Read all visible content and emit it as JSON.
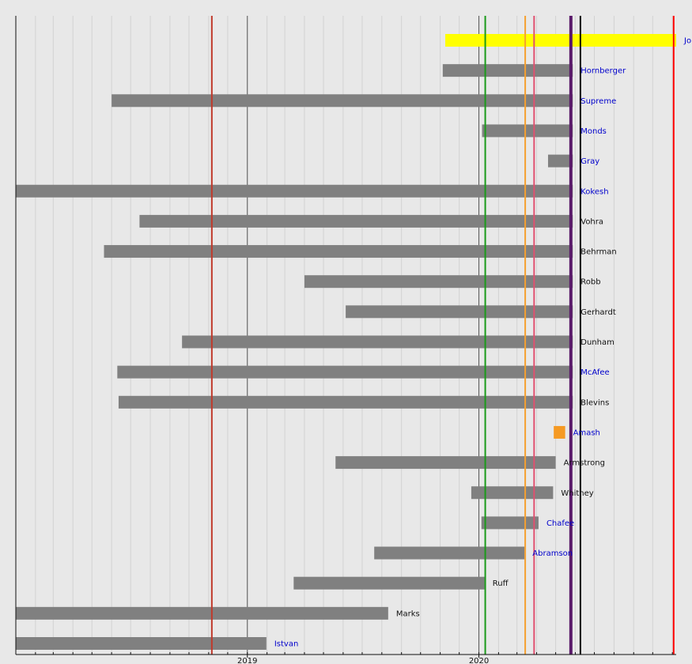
{
  "chart_data": {
    "type": "bar",
    "orientation": "horizontal-timeline",
    "title": "",
    "xlabel": "",
    "ylabel": "",
    "x_range": [
      "2018-01-01",
      "2020-11-07"
    ],
    "x_tick_labels": [
      {
        "label": "2019",
        "date": "2019-01-01"
      },
      {
        "label": "2020",
        "date": "2020-01-01"
      }
    ],
    "grid": true,
    "legend": "none",
    "bars": [
      {
        "name": "Jo",
        "start": "2019-11-09",
        "end": "2020-11-07",
        "color": "#ffff00",
        "link": true
      },
      {
        "name": "Hornberger",
        "start": "2019-11-05",
        "end": "2020-05-28",
        "color": "#808080",
        "link": true
      },
      {
        "name": "Supreme",
        "start": "2018-06-01",
        "end": "2020-05-28",
        "color": "#808080",
        "link": true
      },
      {
        "name": "Monds",
        "start": "2020-01-06",
        "end": "2020-05-28",
        "color": "#808080",
        "link": true
      },
      {
        "name": "Gray",
        "start": "2020-04-19",
        "end": "2020-05-28",
        "color": "#808080",
        "link": true
      },
      {
        "name": "Kokesh",
        "start": "2018-01-01",
        "end": "2020-05-28",
        "color": "#808080",
        "link": true
      },
      {
        "name": "Vohra",
        "start": "2018-07-15",
        "end": "2020-05-28",
        "color": "#808080",
        "link": false
      },
      {
        "name": "Behrman",
        "start": "2018-05-20",
        "end": "2020-05-28",
        "color": "#808080",
        "link": false
      },
      {
        "name": "Robb",
        "start": "2019-04-01",
        "end": "2020-05-28",
        "color": "#808080",
        "link": false
      },
      {
        "name": "Gerhardt",
        "start": "2019-06-05",
        "end": "2020-05-28",
        "color": "#808080",
        "link": false
      },
      {
        "name": "Dunham",
        "start": "2018-09-20",
        "end": "2020-05-28",
        "color": "#808080",
        "link": false
      },
      {
        "name": "McAfee",
        "start": "2018-06-10",
        "end": "2020-05-28",
        "color": "#808080",
        "link": true
      },
      {
        "name": "Blevins",
        "start": "2018-06-12",
        "end": "2020-05-28",
        "color": "#808080",
        "link": false
      },
      {
        "name": "Amash",
        "start": "2020-04-28",
        "end": "2020-05-16",
        "color": "#f59a23",
        "link": true
      },
      {
        "name": "Armstrong",
        "start": "2019-05-20",
        "end": "2020-05-01",
        "color": "#808080",
        "link": false
      },
      {
        "name": "Whitney",
        "start": "2019-12-20",
        "end": "2020-04-27",
        "color": "#808080",
        "link": false
      },
      {
        "name": "Chafee",
        "start": "2020-01-05",
        "end": "2020-04-04",
        "color": "#808080",
        "link": true
      },
      {
        "name": "Abramson",
        "start": "2019-07-20",
        "end": "2020-03-13",
        "color": "#808080",
        "link": true
      },
      {
        "name": "Ruff",
        "start": "2019-03-15",
        "end": "2020-01-10",
        "color": "#808080",
        "link": false
      },
      {
        "name": "Marks",
        "start": "2018-01-01",
        "end": "2019-08-11",
        "color": "#808080",
        "link": false
      },
      {
        "name": "Istvan",
        "start": "2018-01-01",
        "end": "2019-01-31",
        "color": "#808080",
        "link": true
      }
    ],
    "vertical_markers": [
      {
        "date": "2018-11-06",
        "color": "#c0392b"
      },
      {
        "date": "2020-01-11",
        "color": "#1a9a1a"
      },
      {
        "date": "2020-03-14",
        "color": "#f5a030"
      },
      {
        "date": "2020-03-28",
        "color": "#e05070"
      },
      {
        "date": "2020-05-25",
        "color": "#5a1a6a"
      },
      {
        "date": "2020-06-09",
        "color": "#000000"
      },
      {
        "date": "2020-11-03",
        "color": "#ff0000"
      }
    ]
  }
}
